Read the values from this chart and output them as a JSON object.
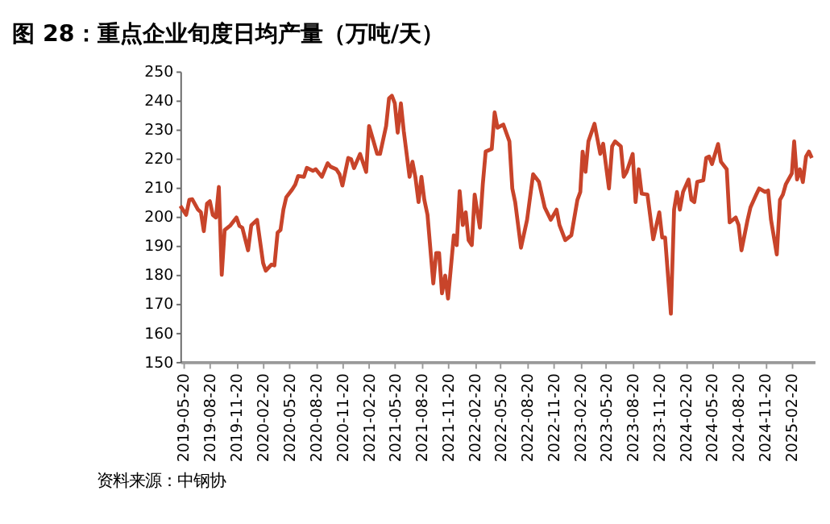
{
  "chart_data": {
    "type": "line",
    "title": "图 28：重点企业旬度日均产量（万吨/天）",
    "x": [
      "2019-05-10",
      "2019-05-30",
      "2019-06-10",
      "2019-06-20",
      "2019-07-10",
      "2019-07-20",
      "2019-07-30",
      "2019-08-10",
      "2019-08-20",
      "2019-08-30",
      "2019-09-10",
      "2019-09-20",
      "2019-09-30",
      "2019-10-10",
      "2019-10-30",
      "2019-11-20",
      "2019-11-30",
      "2019-12-10",
      "2019-12-30",
      "2020-01-10",
      "2020-01-30",
      "2020-02-20",
      "2020-02-29",
      "2020-03-20",
      "2020-03-30",
      "2020-04-10",
      "2020-04-20",
      "2020-04-30",
      "2020-05-10",
      "2020-05-30",
      "2020-06-10",
      "2020-06-20",
      "2020-07-10",
      "2020-07-20",
      "2020-08-10",
      "2020-08-20",
      "2020-09-10",
      "2020-09-30",
      "2020-10-10",
      "2020-10-30",
      "2020-11-10",
      "2020-11-20",
      "2020-12-10",
      "2020-12-20",
      "2020-12-30",
      "2021-01-20",
      "2021-02-10",
      "2021-02-20",
      "2021-02-28",
      "2021-03-20",
      "2021-03-30",
      "2021-04-20",
      "2021-04-30",
      "2021-05-10",
      "2021-05-20",
      "2021-05-30",
      "2021-06-10",
      "2021-06-20",
      "2021-07-10",
      "2021-07-20",
      "2021-07-30",
      "2021-08-10",
      "2021-08-20",
      "2021-08-30",
      "2021-09-10",
      "2021-09-30",
      "2021-10-10",
      "2021-10-20",
      "2021-10-30",
      "2021-11-10",
      "2021-11-20",
      "2021-12-10",
      "2021-12-20",
      "2021-12-30",
      "2022-01-10",
      "2022-01-20",
      "2022-01-30",
      "2022-02-10",
      "2022-02-20",
      "2022-03-10",
      "2022-03-20",
      "2022-03-30",
      "2022-04-20",
      "2022-04-30",
      "2022-05-10",
      "2022-05-30",
      "2022-06-20",
      "2022-06-30",
      "2022-07-10",
      "2022-07-30",
      "2022-08-20",
      "2022-09-10",
      "2022-09-30",
      "2022-10-20",
      "2022-11-10",
      "2022-11-30",
      "2022-12-10",
      "2022-12-30",
      "2023-01-20",
      "2023-02-10",
      "2023-02-20",
      "2023-02-28",
      "2023-03-10",
      "2023-03-20",
      "2023-04-10",
      "2023-04-20",
      "2023-04-30",
      "2023-05-10",
      "2023-05-30",
      "2023-06-10",
      "2023-06-20",
      "2023-07-10",
      "2023-07-20",
      "2023-07-30",
      "2023-08-20",
      "2023-08-30",
      "2023-09-10",
      "2023-09-20",
      "2023-10-10",
      "2023-10-30",
      "2023-11-10",
      "2023-11-20",
      "2023-11-30",
      "2023-12-10",
      "2023-12-30",
      "2024-01-10",
      "2024-01-20",
      "2024-01-30",
      "2024-02-10",
      "2024-02-29",
      "2024-03-10",
      "2024-03-20",
      "2024-03-30",
      "2024-04-20",
      "2024-04-30",
      "2024-05-10",
      "2024-05-20",
      "2024-06-10",
      "2024-06-20",
      "2024-07-10",
      "2024-07-20",
      "2024-08-10",
      "2024-08-20",
      "2024-08-30",
      "2024-09-20",
      "2024-09-30",
      "2024-10-20",
      "2024-10-30",
      "2024-11-20",
      "2024-11-30",
      "2024-12-10",
      "2024-12-30",
      "2025-01-10",
      "2025-01-20",
      "2025-01-30",
      "2025-02-20",
      "2025-02-28",
      "2025-03-10",
      "2025-03-20",
      "2025-03-30",
      "2025-04-10",
      "2025-04-20",
      "2025-04-30"
    ],
    "series": [
      {
        "color": "#c8442a",
        "values": [
          203.7,
          200.6,
          205.8,
          206,
          202.4,
          201.5,
          195,
          204.5,
          205.3,
          200.6,
          199.7,
          210.2,
          180,
          195.4,
          197,
          199.7,
          196.8,
          196.2,
          188.4,
          197,
          198.9,
          184,
          181.4,
          183.5,
          183.2,
          194.5,
          195.4,
          202.4,
          206.7,
          209.3,
          211,
          214,
          213.7,
          216.8,
          215.8,
          216.3,
          213.7,
          218.4,
          217.2,
          216.3,
          214.6,
          210.7,
          220.2,
          219.8,
          216.7,
          221.6,
          215.4,
          231.2,
          228.5,
          221.6,
          221.6,
          231.2,
          240.7,
          241.6,
          239,
          228.9,
          239,
          229.4,
          213.7,
          218.9,
          213.7,
          205,
          213.7,
          205.8,
          200.6,
          177,
          187.5,
          187.5,
          173.6,
          179.7,
          171.8,
          193.6,
          190.2,
          208.8,
          197.1,
          201.5,
          191.9,
          190.2,
          207.6,
          196.2,
          211.1,
          222.4,
          223.3,
          235.9,
          230.6,
          231.7,
          225.9,
          209.7,
          205,
          189.3,
          198.9,
          214.6,
          212,
          203.2,
          198.9,
          202.4,
          197.1,
          191.9,
          193.6,
          205.8,
          208.5,
          222.4,
          215.4,
          225.9,
          232,
          226.8,
          221.6,
          225.1,
          209.7,
          224.2,
          225.9,
          224.2,
          213.7,
          215.4,
          221.6,
          205,
          216.3,
          207.9,
          207.6,
          192.2,
          197.1,
          201.5,
          192.8,
          192.8,
          166.6,
          202.4,
          208.5,
          202.4,
          208.5,
          212.8,
          205.8,
          205,
          212,
          212.5,
          220.2,
          220.7,
          218.1,
          225,
          218.9,
          216.3,
          198,
          199.7,
          197.1,
          188.4,
          198.9,
          203.2,
          207.6,
          209.7,
          208.5,
          209,
          198.9,
          187,
          205.8,
          207.6,
          211.1,
          214.9,
          225.9,
          212.8,
          216.3,
          211.9,
          220.7,
          222.4,
          220.2
        ]
      }
    ],
    "xlim": [
      "2019-05-10",
      "2025-05-10"
    ],
    "xticks": [
      "2019-05-20",
      "2019-08-20",
      "2019-11-20",
      "2020-02-20",
      "2020-05-20",
      "2020-08-20",
      "2020-11-20",
      "2021-02-20",
      "2021-05-20",
      "2021-08-20",
      "2021-11-20",
      "2022-02-20",
      "2022-05-20",
      "2022-08-20",
      "2022-11-20",
      "2023-02-20",
      "2023-05-20",
      "2023-08-20",
      "2023-11-20",
      "2024-02-20",
      "2024-05-20",
      "2024-08-20",
      "2024-11-20",
      "2025-02-20"
    ],
    "ylim": [
      150,
      250
    ],
    "yticks": [
      150,
      160,
      170,
      180,
      190,
      200,
      210,
      220,
      230,
      240,
      250
    ],
    "grid": false,
    "marker": "none",
    "line_style": "solid",
    "annotations": [
      "资料来源：中钢协"
    ]
  }
}
